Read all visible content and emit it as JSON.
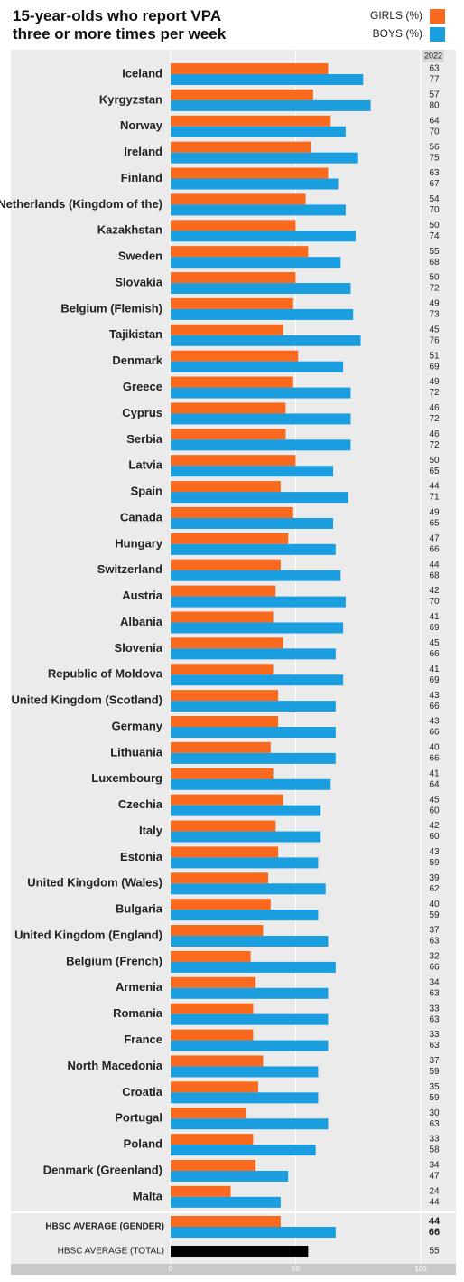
{
  "chart_data": {
    "type": "hbar",
    "title": "15-year-olds who report VPA three or more times per week",
    "value_column_header": "2022",
    "categories": [
      "Iceland",
      "Kyrgyzstan",
      "Norway",
      "Ireland",
      "Finland",
      "Netherlands (Kingdom of the)",
      "Kazakhstan",
      "Sweden",
      "Slovakia",
      "Belgium (Flemish)",
      "Tajikistan",
      "Denmark",
      "Greece",
      "Cyprus",
      "Serbia",
      "Latvia",
      "Spain",
      "Canada",
      "Hungary",
      "Switzerland",
      "Austria",
      "Albania",
      "Slovenia",
      "Republic of Moldova",
      "United Kingdom (Scotland)",
      "Germany",
      "Lithuania",
      "Luxembourg",
      "Czechia",
      "Italy",
      "Estonia",
      "United Kingdom (Wales)",
      "Bulgaria",
      "United Kingdom (England)",
      "Belgium (French)",
      "Armenia",
      "Romania",
      "France",
      "North Macedonia",
      "Croatia",
      "Portugal",
      "Poland",
      "Denmark (Greenland)",
      "Malta"
    ],
    "series": [
      {
        "name": "GIRLS (%)",
        "color": "#f96a1f",
        "values": [
          63,
          57,
          64,
          56,
          63,
          54,
          50,
          55,
          50,
          49,
          45,
          51,
          49,
          46,
          46,
          50,
          44,
          49,
          47,
          44,
          42,
          41,
          45,
          41,
          43,
          43,
          40,
          41,
          45,
          42,
          43,
          39,
          40,
          37,
          32,
          34,
          33,
          33,
          37,
          35,
          30,
          33,
          34,
          24
        ]
      },
      {
        "name": "BOYS (%)",
        "color": "#1a9ee0",
        "values": [
          77,
          80,
          70,
          75,
          67,
          70,
          74,
          68,
          72,
          73,
          76,
          69,
          72,
          72,
          72,
          65,
          71,
          65,
          66,
          68,
          70,
          69,
          66,
          69,
          66,
          66,
          66,
          64,
          60,
          60,
          59,
          62,
          59,
          63,
          66,
          63,
          63,
          63,
          59,
          59,
          63,
          58,
          47,
          44
        ]
      }
    ],
    "gender_average": {
      "label": "HBSC AVERAGE (GENDER)",
      "values": [
        44,
        66
      ]
    },
    "total_average": {
      "label": "HBSC AVERAGE (TOTAL)",
      "value": 55,
      "color": "#000000"
    },
    "xlim": [
      0,
      100
    ],
    "xticks": [
      0,
      50,
      100
    ],
    "grid": true
  }
}
